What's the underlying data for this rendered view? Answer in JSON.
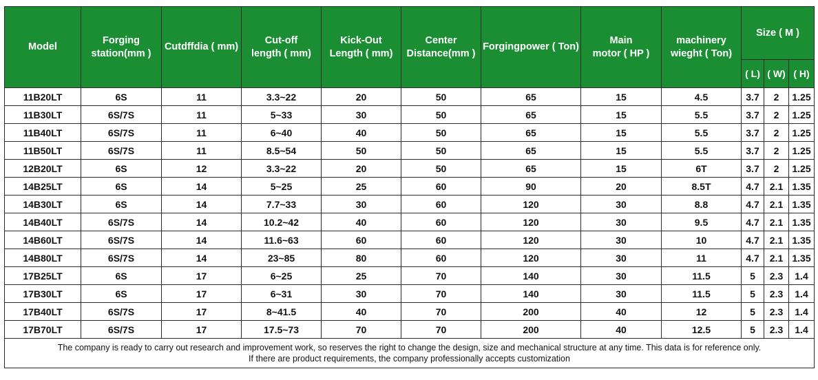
{
  "headers": {
    "model": "Model",
    "forging_station": [
      "Forging",
      "station(mm )"
    ],
    "cutoff_dia": "Cutdffdia ( mm)",
    "cutoff_length": [
      "Cut-off",
      "length ( mm)"
    ],
    "kickout_length": [
      "Kick-Out",
      "Length ( mm)"
    ],
    "center_distance": [
      "Center",
      "Distance(mm )"
    ],
    "forging_power": "Forgingpower ( Ton)",
    "main_motor": [
      "Main",
      "motor ( HP )"
    ],
    "machinery_weight": [
      "machinery",
      "wieght ( Ton)"
    ],
    "size": "Size ( M )",
    "size_l": "( L)",
    "size_w": "( W)",
    "size_h": "( H)"
  },
  "rows": [
    [
      "11B20LT",
      "6S",
      "11",
      "3.3~22",
      "20",
      "50",
      "65",
      "15",
      "4.5",
      "3.7",
      "2",
      "1.25"
    ],
    [
      "11B30LT",
      "6S/7S",
      "11",
      "5~33",
      "30",
      "50",
      "65",
      "15",
      "5.5",
      "3.7",
      "2",
      "1.25"
    ],
    [
      "11B40LT",
      "6S/7S",
      "11",
      "6~40",
      "40",
      "50",
      "65",
      "15",
      "5.5",
      "3.7",
      "2",
      "1.25"
    ],
    [
      "11B50LT",
      "6S/7S",
      "11",
      "8.5~54",
      "50",
      "50",
      "65",
      "15",
      "5.5",
      "3.7",
      "2",
      "1.25"
    ],
    [
      "12B20LT",
      "6S",
      "12",
      "3.3~22",
      "20",
      "50",
      "65",
      "15",
      "6T",
      "3.7",
      "2",
      "1.25"
    ],
    [
      "14B25LT",
      "6S",
      "14",
      "5~25",
      "25",
      "60",
      "90",
      "20",
      "8.5T",
      "4.7",
      "2.1",
      "1.35"
    ],
    [
      "14B30LT",
      "6S",
      "14",
      "7.7~33",
      "30",
      "60",
      "120",
      "30",
      "8.8",
      "4.7",
      "2.1",
      "1.35"
    ],
    [
      "14B40LT",
      "6S/7S",
      "14",
      "10.2~42",
      "40",
      "60",
      "120",
      "30",
      "9.5",
      "4.7",
      "2.1",
      "1.35"
    ],
    [
      "14B60LT",
      "6S/7S",
      "14",
      "11.6~63",
      "60",
      "60",
      "120",
      "30",
      "10",
      "4.7",
      "2.1",
      "1.35"
    ],
    [
      "14B80LT",
      "6S/7S",
      "14",
      "23~85",
      "80",
      "60",
      "120",
      "30",
      "11",
      "4.7",
      "2.1",
      "1.35"
    ],
    [
      "17B25LT",
      "6S",
      "17",
      "6~25",
      "25",
      "70",
      "140",
      "30",
      "11.5",
      "5",
      "2.3",
      "1.4"
    ],
    [
      "17B30LT",
      "6S",
      "17",
      "6~31",
      "30",
      "70",
      "140",
      "30",
      "11.5",
      "5",
      "2.3",
      "1.4"
    ],
    [
      "17B40LT",
      "6S/7S",
      "17",
      "8~41.5",
      "40",
      "70",
      "200",
      "40",
      "12",
      "5",
      "2.3",
      "1.4"
    ],
    [
      "17B70LT",
      "6S/7S",
      "17",
      "17.5~73",
      "70",
      "70",
      "200",
      "40",
      "12.5",
      "5",
      "2.3",
      "1.4"
    ]
  ],
  "footnote": [
    "The company is ready to carry out research and improvement work, so reserves the right to change the design, size and mechanical structure at any time. This data is for reference only.",
    "If there are product requirements, the company professionally accepts customization"
  ],
  "colors": {
    "header_bg": "#1b8e34",
    "header_text": "#ffffff",
    "border": "#2b2b2b"
  }
}
